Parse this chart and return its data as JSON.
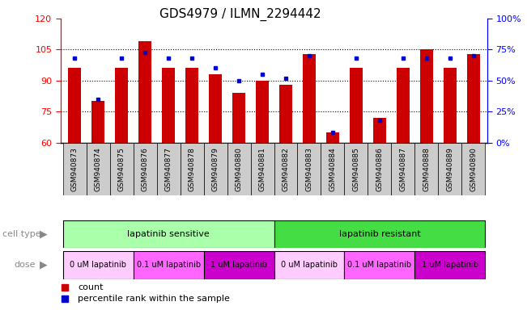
{
  "title": "GDS4979 / ILMN_2294442",
  "samples": [
    "GSM940873",
    "GSM940874",
    "GSM940875",
    "GSM940876",
    "GSM940877",
    "GSM940878",
    "GSM940879",
    "GSM940880",
    "GSM940881",
    "GSM940882",
    "GSM940883",
    "GSM940884",
    "GSM940885",
    "GSM940886",
    "GSM940887",
    "GSM940888",
    "GSM940889",
    "GSM940890"
  ],
  "red_values": [
    96,
    80,
    96,
    109,
    96,
    96,
    93,
    84,
    90,
    88,
    103,
    65,
    96,
    72,
    96,
    105,
    96,
    103
  ],
  "blue_values": [
    68,
    35,
    68,
    73,
    68,
    68,
    60,
    50,
    55,
    52,
    70,
    8,
    68,
    18,
    68,
    68,
    68,
    70
  ],
  "ylim_left": [
    60,
    120
  ],
  "ylim_right": [
    0,
    100
  ],
  "yticks_left": [
    60,
    75,
    90,
    105,
    120
  ],
  "yticks_right": [
    0,
    25,
    50,
    75,
    100
  ],
  "ytick_labels_right": [
    "0%",
    "25%",
    "50%",
    "75%",
    "100%"
  ],
  "cell_type_sensitive_label": "lapatinib sensitive",
  "cell_type_resistant_label": "lapatinib resistant",
  "dose_labels": [
    "0 uM lapatinib",
    "0.1 uM lapatinib",
    "1 uM lapatinib",
    "0 uM lapatinib",
    "0.1 uM lapatinib",
    "1 uM lapatinib"
  ],
  "sensitive_count": 9,
  "resistant_count": 9,
  "dose_groups": [
    3,
    3,
    3,
    3,
    3,
    3
  ],
  "bar_color": "#cc0000",
  "blue_color": "#0000cc",
  "sensitive_color": "#aaffaa",
  "resistant_color": "#44dd44",
  "dose_colors": [
    "#ffccff",
    "#ff66ff",
    "#cc00cc",
    "#ffccff",
    "#ff66ff",
    "#cc00cc"
  ],
  "legend_count_label": "count",
  "legend_percentile_label": "percentile rank within the sample",
  "bar_width": 0.55,
  "title_fontsize": 11,
  "tick_fontsize": 7,
  "xtick_bg_color": "#cccccc",
  "label_color": "#888888",
  "arrow_color": "#888888"
}
